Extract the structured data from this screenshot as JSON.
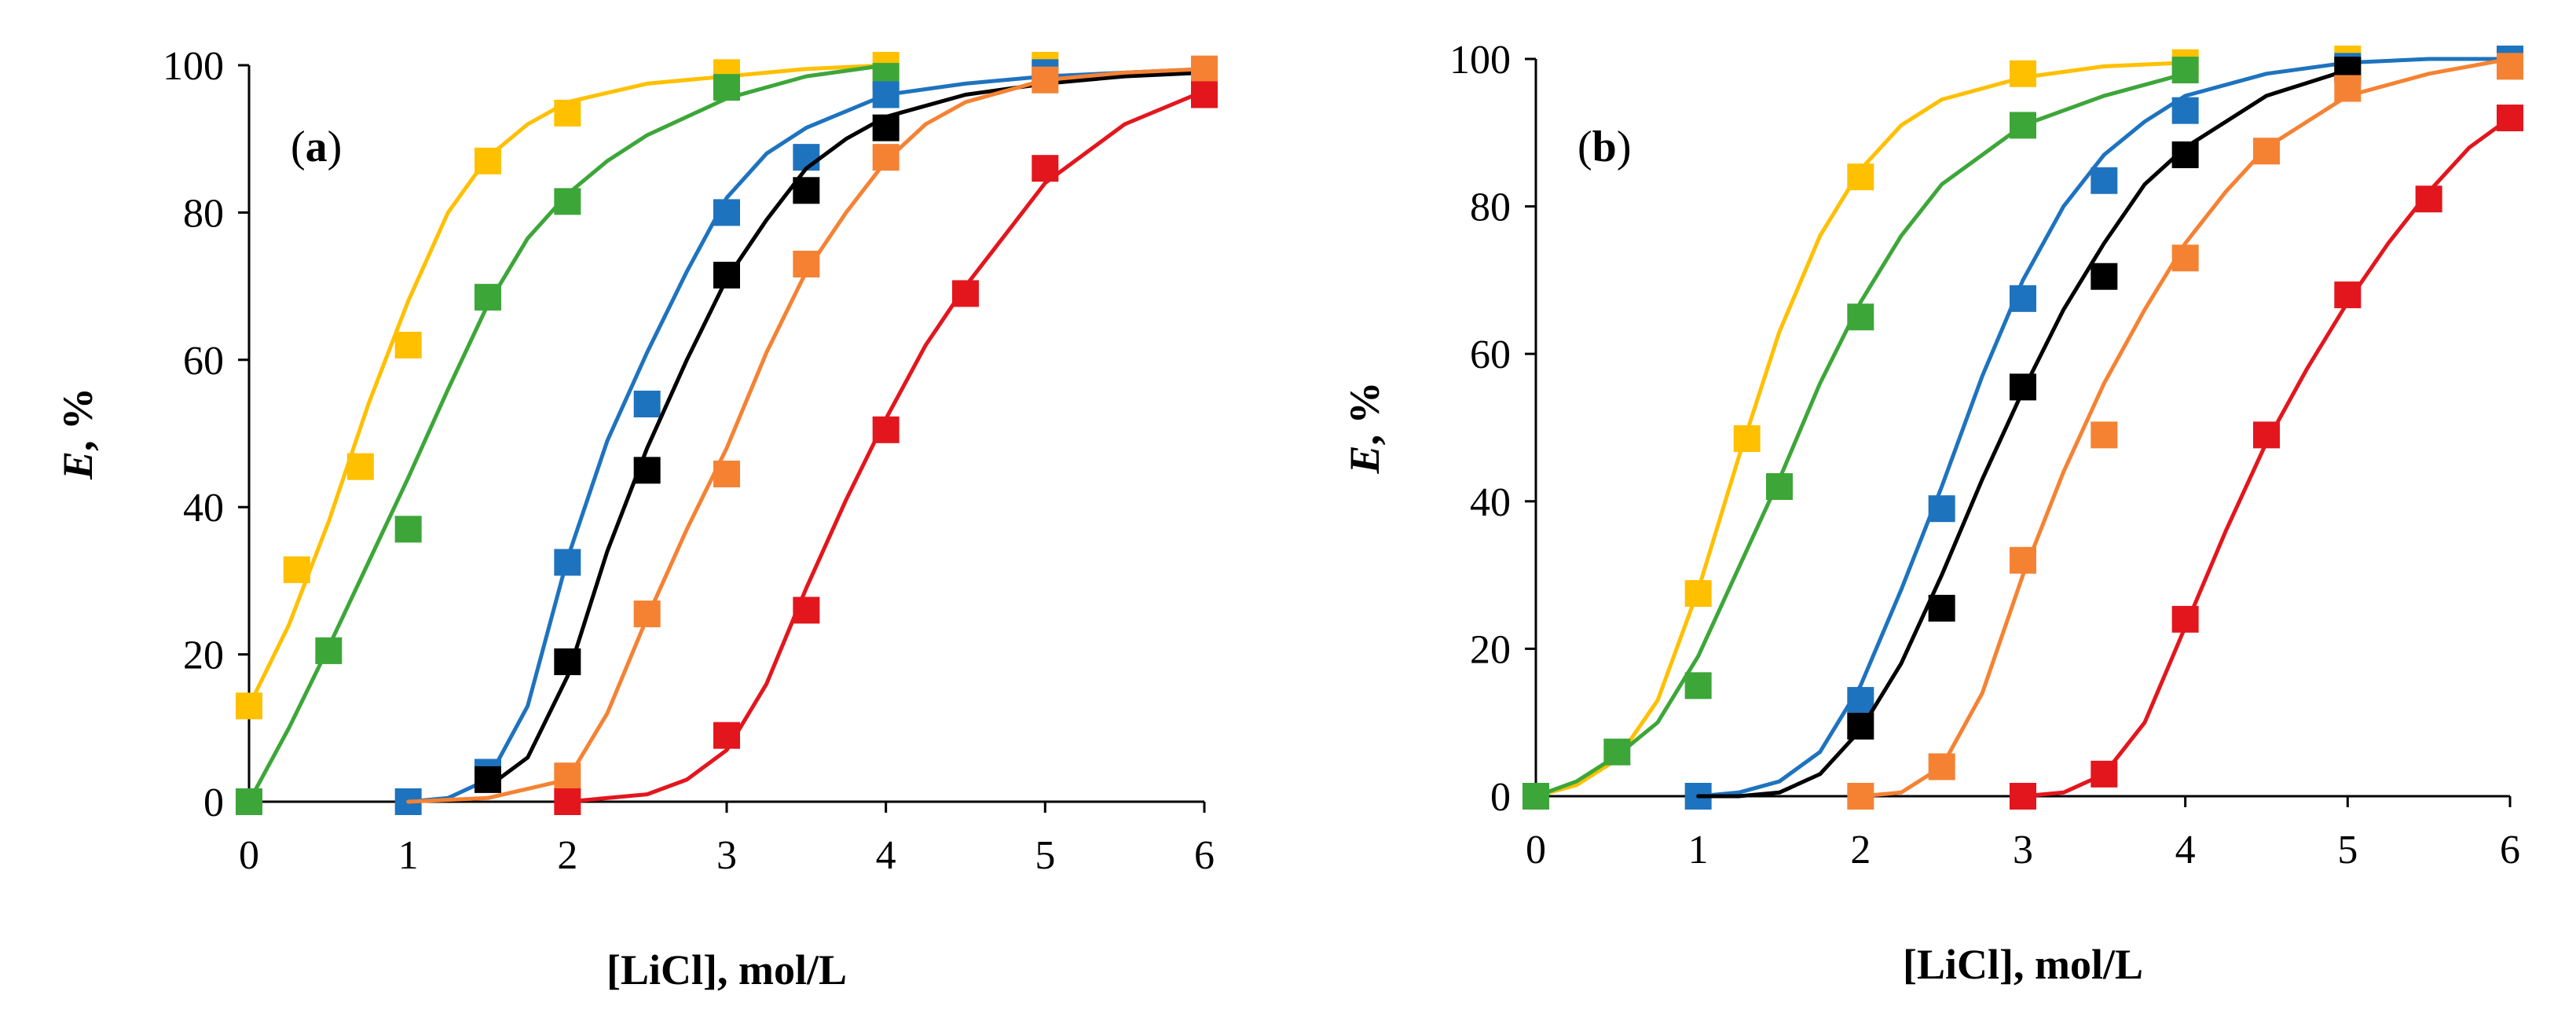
{
  "chart_data": [
    {
      "type": "scatter",
      "panel_label": {
        "open": "(",
        "letter": "a",
        "close": ")"
      },
      "title": "",
      "xlabel": "[LiCl], mol/L",
      "ylabel_italic": "E",
      "ylabel_rest": ", %",
      "xlim": [
        0,
        6
      ],
      "ylim": [
        0,
        100
      ],
      "xticks": [
        "0",
        "1",
        "2",
        "3",
        "4",
        "5",
        "6"
      ],
      "yticks": [
        "0",
        "20",
        "40",
        "60",
        "80",
        "100"
      ],
      "legend": "none",
      "grid": false,
      "series": [
        {
          "name": "yellow",
          "color": "#FFC000",
          "x": [
            0,
            0.3,
            0.7,
            1.0,
            1.5,
            2.0,
            3.0,
            4.0,
            5.0
          ],
          "y": [
            13,
            31.5,
            45.5,
            62,
            87,
            93.5,
            99,
            100,
            100
          ],
          "fit_x": [
            0,
            0.25,
            0.5,
            0.75,
            1.0,
            1.25,
            1.5,
            1.75,
            2.0,
            2.5,
            3.0,
            3.5,
            4.0
          ],
          "fit_y": [
            13,
            24,
            38,
            54,
            68,
            80,
            87.5,
            92,
            95,
            97.5,
            98.5,
            99.5,
            100
          ]
        },
        {
          "name": "green",
          "color": "#3DA639",
          "x": [
            0,
            0.5,
            1.0,
            1.5,
            2.0,
            3.0,
            4.0
          ],
          "y": [
            0,
            20.5,
            37,
            68.5,
            81.5,
            97,
            98.5
          ],
          "fit_x": [
            0,
            0.25,
            0.5,
            0.75,
            1.0,
            1.25,
            1.5,
            1.75,
            2.0,
            2.25,
            2.5,
            3.0,
            3.5,
            4.0
          ],
          "fit_y": [
            0,
            10,
            21,
            32.5,
            44,
            56,
            67.5,
            76.5,
            82.5,
            87,
            90.5,
            95.5,
            98.5,
            100
          ]
        },
        {
          "name": "blue",
          "color": "#1E73BE",
          "x": [
            1.0,
            1.5,
            2.0,
            2.5,
            3.0,
            3.5,
            4.0,
            5.0,
            6.0
          ],
          "y": [
            0,
            4,
            32.5,
            54,
            80,
            87.5,
            96,
            99,
            99
          ],
          "fit_x": [
            1.0,
            1.25,
            1.5,
            1.75,
            2.0,
            2.25,
            2.5,
            2.75,
            3.0,
            3.25,
            3.5,
            4.0,
            4.5,
            5.0,
            5.5,
            6.0
          ],
          "fit_y": [
            0,
            0.5,
            3,
            13,
            33,
            49,
            61,
            72,
            82,
            88,
            91.5,
            96,
            97.5,
            98.5,
            99,
            99.5
          ]
        },
        {
          "name": "black",
          "color": "#000000",
          "x": [
            1.5,
            2.0,
            2.5,
            3.0,
            3.5,
            4.0
          ],
          "y": [
            3,
            19,
            45,
            71.5,
            83,
            91.5
          ],
          "fit_x": [
            1.5,
            1.75,
            2.0,
            2.25,
            2.5,
            2.75,
            3.0,
            3.25,
            3.5,
            3.75,
            4.0,
            4.5,
            5.0,
            5.5,
            6.0
          ],
          "fit_y": [
            2,
            6,
            17,
            34,
            48,
            60,
            71,
            79,
            86,
            90,
            93,
            96,
            97.5,
            98.5,
            99
          ]
        },
        {
          "name": "orange",
          "color": "#F58233",
          "x": [
            2.0,
            2.5,
            3.0,
            3.5,
            4.0,
            5.0,
            6.0
          ],
          "y": [
            3.5,
            25.5,
            44.5,
            73,
            87.5,
            98,
            99.5
          ],
          "fit_x": [
            1.0,
            1.5,
            2.0,
            2.25,
            2.5,
            2.75,
            3.0,
            3.25,
            3.5,
            3.75,
            4.0,
            4.25,
            4.5,
            5.0,
            5.5,
            6.0
          ],
          "fit_y": [
            0,
            0.5,
            3,
            12,
            25,
            37,
            48,
            61,
            72,
            80,
            87,
            92,
            95,
            98,
            99,
            99.5
          ]
        },
        {
          "name": "red",
          "color": "#E3161D",
          "x": [
            2.0,
            3.0,
            3.5,
            4.0,
            4.5,
            5.0,
            6.0
          ],
          "y": [
            0,
            9,
            26,
            50.5,
            69,
            86,
            96
          ],
          "fit_x": [
            2.0,
            2.5,
            2.75,
            3.0,
            3.25,
            3.5,
            3.75,
            4.0,
            4.25,
            4.5,
            4.75,
            5.0,
            5.5,
            6.0
          ],
          "fit_y": [
            0,
            1,
            3,
            7,
            16,
            29,
            41,
            52,
            62,
            70,
            77,
            84,
            92,
            96.5
          ]
        }
      ]
    },
    {
      "type": "scatter",
      "panel_label": {
        "open": "(",
        "letter": "b",
        "close": ")"
      },
      "title": "",
      "xlabel": "[LiCl], mol/L",
      "ylabel_italic": "E",
      "ylabel_rest": ", %",
      "xlim": [
        0,
        6
      ],
      "ylim": [
        0,
        100
      ],
      "xticks": [
        "0",
        "1",
        "2",
        "3",
        "4",
        "5",
        "6"
      ],
      "yticks": [
        "0",
        "20",
        "40",
        "60",
        "80",
        "100"
      ],
      "legend": "none",
      "grid": false,
      "series": [
        {
          "name": "yellow",
          "color": "#FFC000",
          "x": [
            0,
            1.0,
            1.3,
            2.0,
            3.0,
            4.0,
            5.0
          ],
          "y": [
            0,
            27.5,
            48.5,
            84,
            98,
            99.5,
            100
          ],
          "fit_x": [
            0,
            0.25,
            0.5,
            0.75,
            1.0,
            1.25,
            1.5,
            1.75,
            2.0,
            2.25,
            2.5,
            3.0,
            3.5,
            4.0
          ],
          "fit_y": [
            0,
            1.5,
            5,
            13,
            28,
            46,
            63,
            76,
            85,
            91,
            94.5,
            97.5,
            99,
            99.5
          ]
        },
        {
          "name": "green",
          "color": "#3DA639",
          "x": [
            0,
            0.5,
            1.0,
            1.5,
            2.0,
            3.0,
            4.0
          ],
          "y": [
            0,
            6,
            15,
            42,
            65,
            91,
            98.5
          ],
          "fit_x": [
            0,
            0.25,
            0.5,
            0.75,
            1.0,
            1.25,
            1.5,
            1.75,
            2.0,
            2.25,
            2.5,
            3.0,
            3.5,
            4.0
          ],
          "fit_y": [
            0,
            2,
            5.5,
            10,
            19,
            31,
            43,
            56,
            67,
            76,
            83,
            91,
            95,
            98
          ]
        },
        {
          "name": "blue",
          "color": "#1E73BE",
          "x": [
            1.0,
            2.0,
            2.5,
            3.0,
            3.5,
            4.0,
            5.0,
            6.0
          ],
          "y": [
            0,
            13,
            39,
            67.5,
            83.5,
            93,
            99,
            100
          ],
          "fit_x": [
            1.0,
            1.25,
            1.5,
            1.75,
            2.0,
            2.25,
            2.5,
            2.75,
            3.0,
            3.25,
            3.5,
            3.75,
            4.0,
            4.5,
            5.0,
            5.5,
            6.0
          ],
          "fit_y": [
            0,
            0.5,
            2,
            6,
            15,
            28,
            42,
            57,
            70,
            80,
            87,
            91.5,
            95,
            98,
            99.5,
            100,
            100
          ]
        },
        {
          "name": "black",
          "color": "#000000",
          "x": [
            2.0,
            2.5,
            3.0,
            3.5,
            4.0,
            5.0
          ],
          "y": [
            9.5,
            25.5,
            55.5,
            70.5,
            87,
            98.5
          ],
          "fit_x": [
            1.0,
            1.25,
            1.5,
            1.75,
            2.0,
            2.25,
            2.5,
            2.75,
            3.0,
            3.25,
            3.5,
            3.75,
            4.0,
            4.5,
            5.0
          ],
          "fit_y": [
            0,
            0,
            0.5,
            3,
            9,
            18,
            30,
            43,
            55,
            66,
            75,
            83,
            88,
            95,
            98.5
          ]
        },
        {
          "name": "orange",
          "color": "#F58233",
          "x": [
            2.0,
            2.5,
            3.0,
            3.5,
            4.0,
            4.5,
            5.0,
            6.0
          ],
          "y": [
            0,
            4,
            32,
            49,
            73,
            87.5,
            96,
            99
          ],
          "fit_x": [
            2.0,
            2.25,
            2.5,
            2.75,
            3.0,
            3.25,
            3.5,
            3.75,
            4.0,
            4.25,
            4.5,
            5.0,
            5.5,
            6.0
          ],
          "fit_y": [
            0,
            0.5,
            4,
            14,
            30,
            44,
            56,
            66,
            75,
            82,
            88,
            95,
            98,
            100
          ]
        },
        {
          "name": "red",
          "color": "#E3161D",
          "x": [
            3.0,
            3.5,
            4.0,
            4.5,
            5.0,
            5.5,
            6.0
          ],
          "y": [
            0,
            3,
            24,
            49,
            68,
            81,
            92
          ],
          "fit_x": [
            3.0,
            3.25,
            3.5,
            3.75,
            4.0,
            4.25,
            4.5,
            4.75,
            5.0,
            5.25,
            5.5,
            5.75,
            6.0
          ],
          "fit_y": [
            0,
            0.5,
            3,
            10,
            23,
            36,
            48,
            58,
            67,
            75,
            82,
            88,
            92
          ]
        }
      ]
    }
  ]
}
